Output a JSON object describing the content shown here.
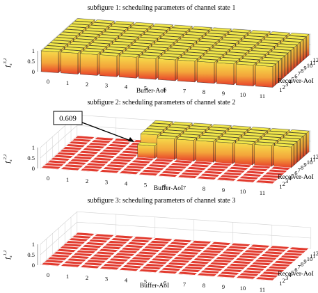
{
  "chart_data": [
    {
      "type": "bar3d",
      "title": "subfigure 1: scheduling parameters of channel state 1",
      "xlabel": "Buffer-AoI",
      "ylabel": "Receiver-AoI",
      "zlabel_main": "f",
      "zlabel_sub": "s",
      "zlabel_sup": "3,1",
      "x_ticks": [
        "0",
        "1",
        "2",
        "3",
        "4",
        "5",
        "6",
        "7",
        "8",
        "9",
        "10",
        "11"
      ],
      "y_ticks": [
        "1",
        "2",
        "3",
        "4",
        "5",
        "6",
        "7",
        "8",
        "9",
        "10",
        "11",
        "12"
      ],
      "z_ticks": [
        "0",
        "0.5",
        "1"
      ],
      "zlim": [
        0,
        1
      ],
      "rule": "value 1 for every cell",
      "values_by_x": [
        1,
        1,
        1,
        1,
        1,
        1,
        1,
        1,
        1,
        1,
        1,
        1
      ],
      "threshold_y": 1
    },
    {
      "type": "bar3d",
      "title": "subfigure 2: scheduling parameters of channel state 2",
      "xlabel": "Buffer-AoI",
      "ylabel": "Receiver-AoI",
      "zlabel_main": "f",
      "zlabel_sub": "s",
      "zlabel_sup": "2,1",
      "x_ticks": [
        "0",
        "1",
        "2",
        "3",
        "4",
        "5",
        "6",
        "7",
        "8",
        "9",
        "10",
        "11"
      ],
      "y_ticks": [
        "1",
        "2",
        "3",
        "4",
        "5",
        "6",
        "7",
        "8",
        "9",
        "10",
        "11",
        "12"
      ],
      "z_ticks": [
        "0",
        "0.5",
        "1"
      ],
      "zlim": [
        0,
        1
      ],
      "rule": "value 1 for Buffer-AoI >= 4 and Receiver-AoI >= 7 (x=4 at y=7 is 0.609); 0 elsewhere",
      "annotation": {
        "text": "0.609",
        "x": 4,
        "y": 7,
        "value": 0.609
      }
    },
    {
      "type": "bar3d",
      "title": "subfigure 3: scheduling parameters of channel state 3",
      "xlabel": "Buffer-AoI",
      "ylabel": "Receiver-AoI",
      "zlabel_main": "f",
      "zlabel_sub": "s",
      "zlabel_sup": "1,1",
      "x_ticks": [
        "0",
        "1",
        "2",
        "3",
        "4",
        "5",
        "6",
        "7",
        "8",
        "9",
        "10",
        "11"
      ],
      "y_ticks": [
        "1",
        "2",
        "3",
        "4",
        "5",
        "6",
        "7",
        "8",
        "9",
        "10",
        "11",
        "12"
      ],
      "z_ticks": [
        "0",
        "0.5",
        "1"
      ],
      "zlim": [
        0,
        1
      ],
      "rule": "value 0 for every cell"
    }
  ],
  "colors": {
    "top": "#f2e84a",
    "face_high": "#f7d548",
    "face_low": "#e8412a",
    "floor": "#e23a2e",
    "edge": "#2a2a2a",
    "grid": "#d0d0d0"
  }
}
